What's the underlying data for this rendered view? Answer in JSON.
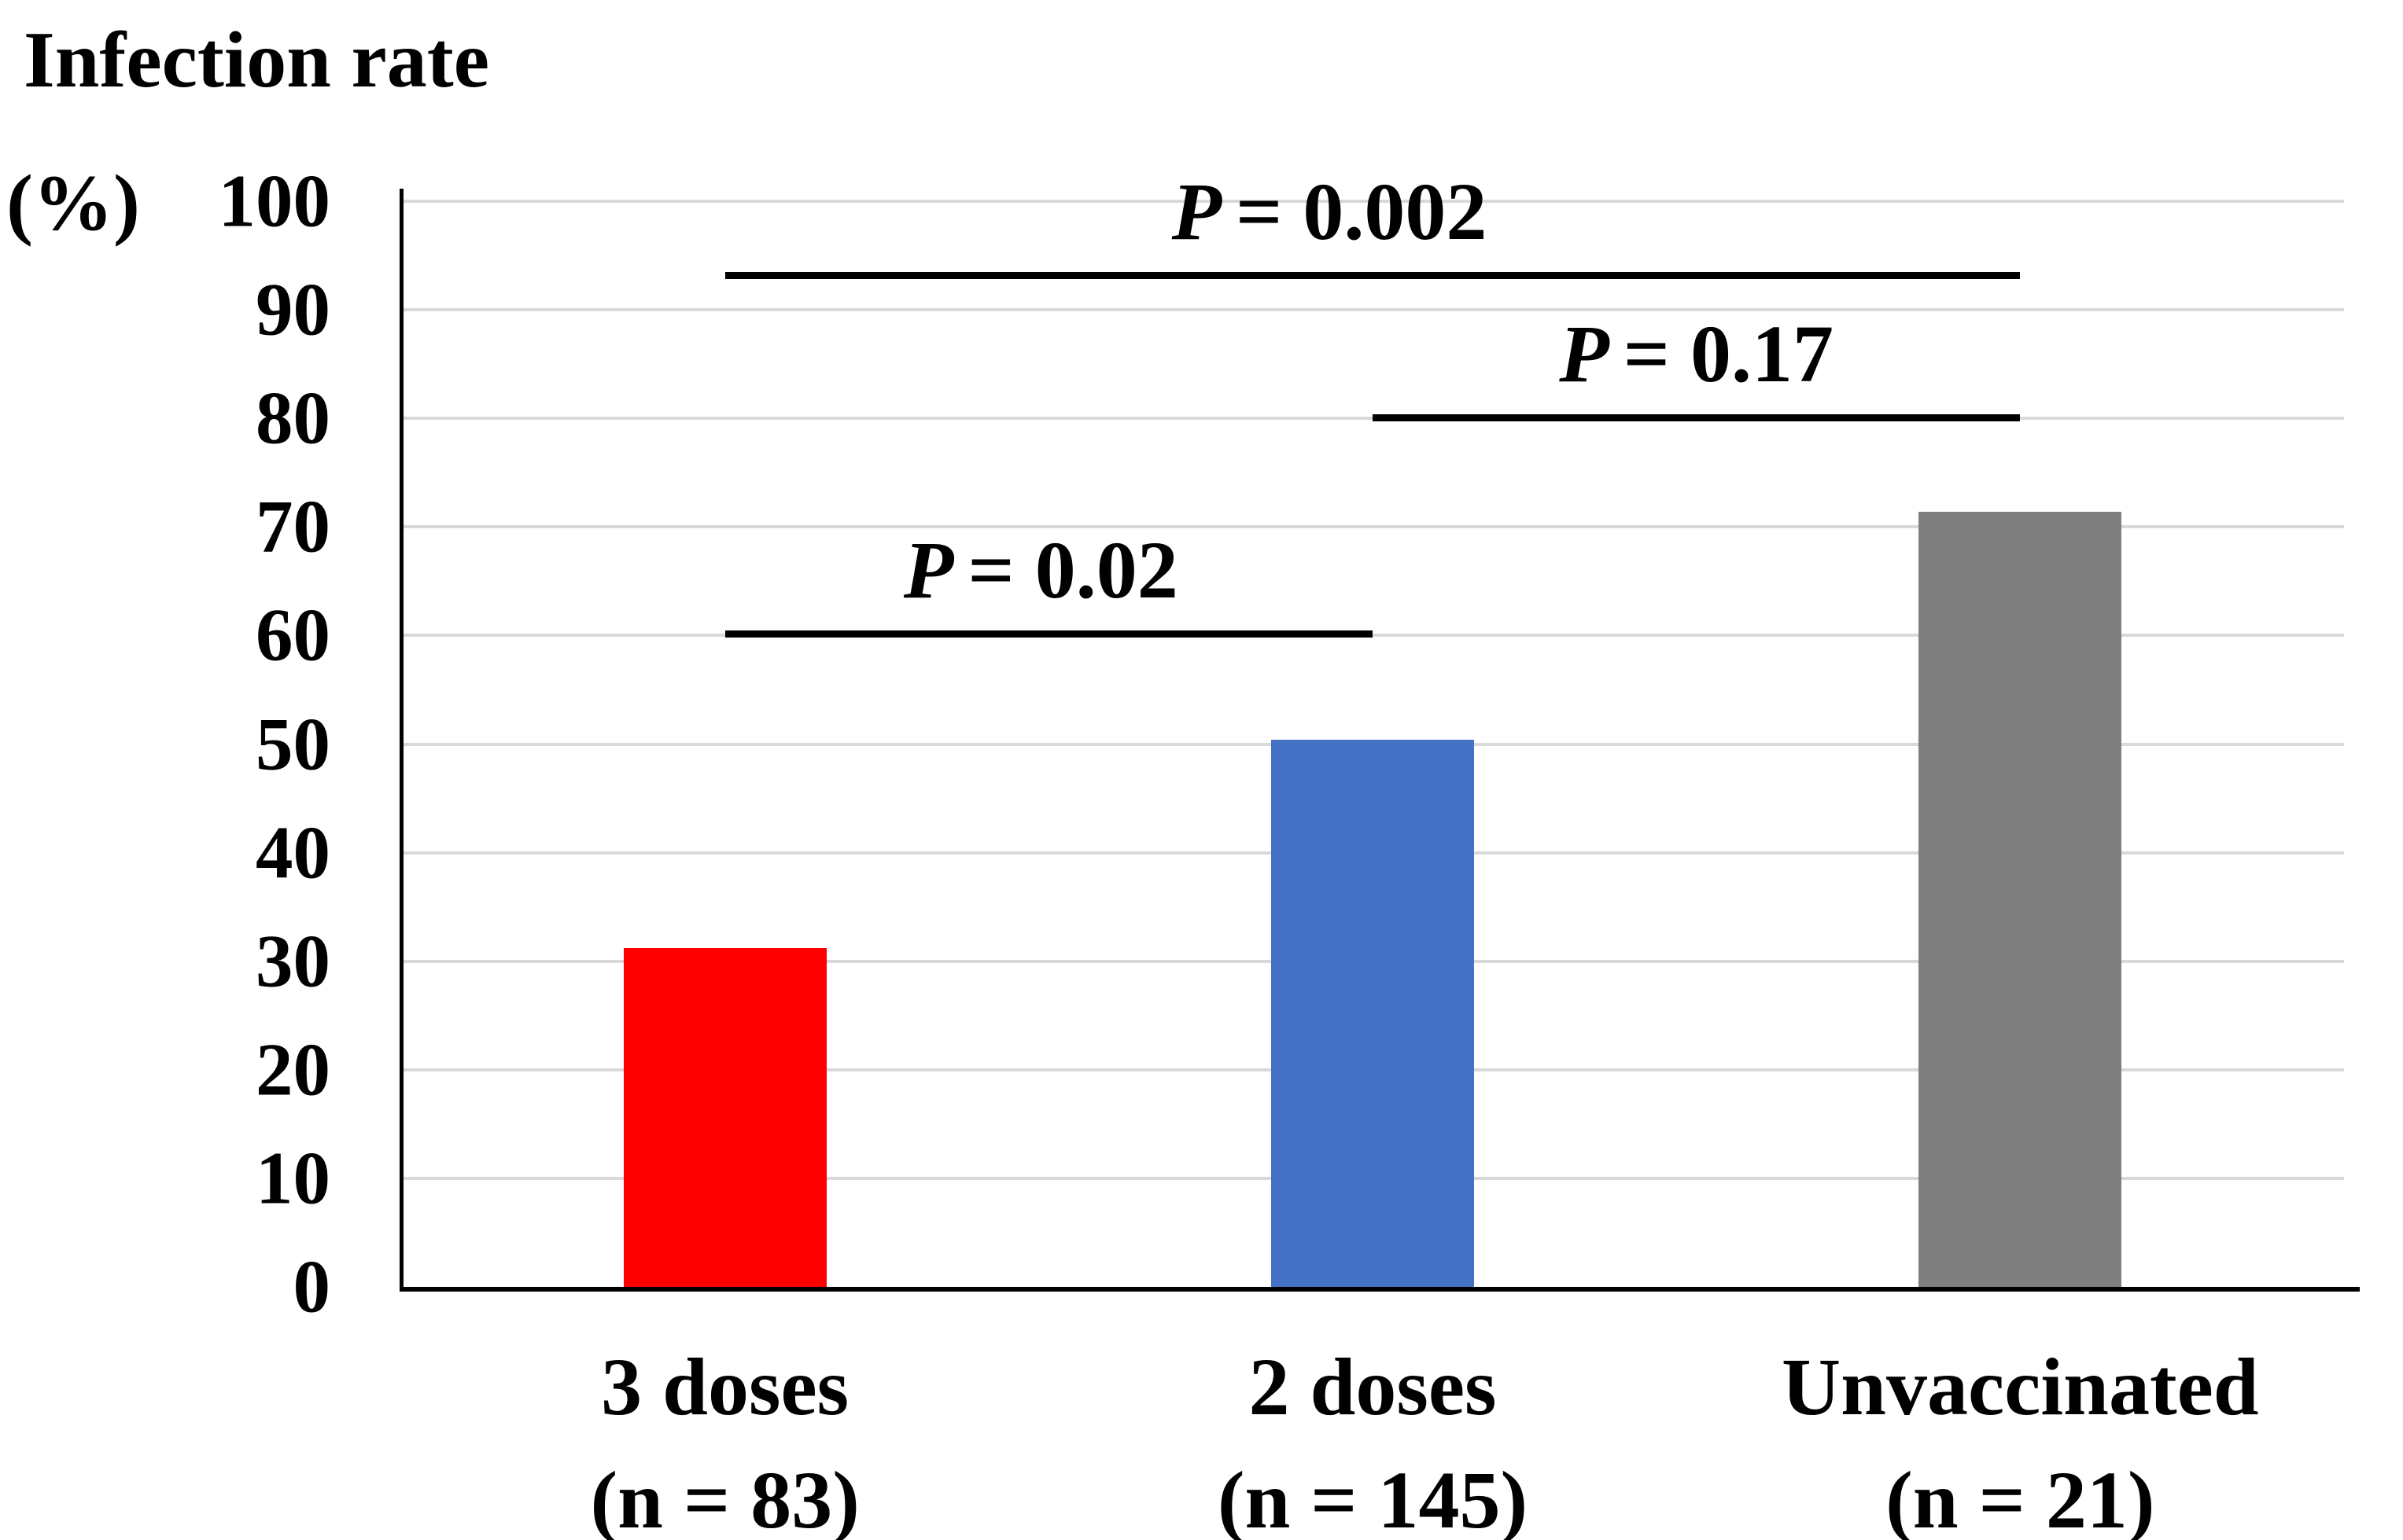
{
  "title": {
    "text": "Infection rate",
    "unit": "(%)"
  },
  "chart_data": {
    "type": "bar",
    "title": "Infection rate (%)",
    "xlabel": "",
    "ylabel": "Infection rate (%)",
    "ylim": [
      0,
      100
    ],
    "y_ticks": [
      0,
      10,
      20,
      30,
      40,
      50,
      60,
      70,
      80,
      90,
      100
    ],
    "grid": true,
    "categories": [
      {
        "label": "3 doses",
        "sublabel": "(n = 83)"
      },
      {
        "label": "2 doses",
        "sublabel": "(n = 145)"
      },
      {
        "label": "Unvaccinated",
        "sublabel": "(n = 21)"
      }
    ],
    "values": [
      31.2,
      50.4,
      71.4
    ],
    "bar_colors": [
      "#ff0000",
      "#4472c4",
      "#7f7f7f"
    ],
    "annotations": [
      {
        "p_symbol": "P",
        "value_text": "= 0.002",
        "from": 0,
        "to": 2,
        "y_pct": 93.2,
        "label_shift_x": -55
      },
      {
        "p_symbol": "P",
        "value_text": "= 0.17",
        "from": 1,
        "to": 2,
        "y_pct": 80.1,
        "label_shift_x": 0
      },
      {
        "p_symbol": "P",
        "value_text": "= 0.02",
        "from": 0,
        "to": 1,
        "y_pct": 60.2,
        "label_shift_x": -10
      }
    ]
  },
  "colors": {
    "gridline": "#d9d9d9",
    "axis": "#000000",
    "background": "#ffffff",
    "text": "#000000"
  }
}
